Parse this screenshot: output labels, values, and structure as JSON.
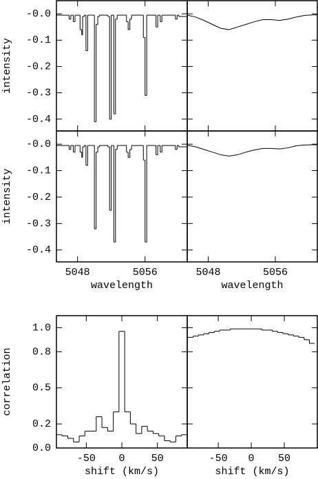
{
  "chart_data": [
    {
      "type": "line",
      "step": true,
      "color": "#000000",
      "ylabel": "intensity",
      "xticklabels": false,
      "yticklabels": true,
      "x": [
        5045.5,
        5047.0,
        5047.2,
        5047.5,
        5047.7,
        5048.3,
        5048.5,
        5048.6,
        5048.8,
        5049.0,
        5049.2,
        5049.4,
        5050.0,
        5050.2,
        5050.4,
        5050.6,
        5051.6,
        5051.8,
        5052.0,
        5052.3,
        5052.5,
        5052.7,
        5053.8,
        5054.0,
        5054.2,
        5054.4,
        5055.8,
        5056.0,
        5056.2,
        5057.3,
        5057.5,
        5057.8,
        5058.0,
        5059.6,
        5059.8,
        5060.0,
        5061.0
      ],
      "values": [
        -0.005,
        -0.02,
        -0.005,
        -0.03,
        -0.005,
        -0.06,
        -0.08,
        -0.01,
        -0.005,
        -0.14,
        -0.005,
        -0.005,
        -0.41,
        -0.04,
        -0.01,
        -0.005,
        -0.01,
        -0.4,
        -0.005,
        -0.38,
        -0.02,
        -0.005,
        -0.03,
        -0.06,
        -0.02,
        -0.005,
        -0.09,
        -0.31,
        -0.005,
        -0.05,
        -0.005,
        -0.03,
        -0.005,
        -0.02,
        -0.005,
        -0.01,
        -0.005
      ],
      "xlim": [
        5045.5,
        5061
      ],
      "ylim": [
        -0.445,
        0.05
      ],
      "xticks": [
        5048,
        5056
      ],
      "yticks": [
        {
          "value": 0,
          "label": "-0.0"
        },
        -0.1,
        -0.2,
        -0.3,
        -0.4
      ]
    },
    {
      "type": "line",
      "step": false,
      "color": "#000000",
      "xticklabels": false,
      "yticklabels": false,
      "x": [
        5045.5,
        5046.5,
        5047.5,
        5048.5,
        5049.5,
        5050.5,
        5051.5,
        5052.5,
        5053.5,
        5054.5,
        5055.5,
        5056.5,
        5057.5,
        5058.5,
        5059.5,
        5060.5,
        5061
      ],
      "values": [
        -0.005,
        -0.012,
        -0.025,
        -0.04,
        -0.055,
        -0.06,
        -0.05,
        -0.04,
        -0.03,
        -0.022,
        -0.022,
        -0.025,
        -0.02,
        -0.012,
        -0.006,
        -0.004,
        -0.004
      ],
      "xlim": [
        5045.5,
        5061
      ],
      "ylim": [
        -0.445,
        0.05
      ],
      "xticks": [
        5048,
        5056
      ],
      "yticks": [
        0,
        -0.1,
        -0.2,
        -0.3,
        -0.4
      ]
    },
    {
      "type": "line",
      "step": true,
      "color": "#000000",
      "ylabel": "intensity",
      "xlabel": "wavelength",
      "xticklabels": true,
      "yticklabels": true,
      "x": [
        5045.5,
        5047.0,
        5047.2,
        5047.5,
        5047.7,
        5048.3,
        5048.5,
        5048.6,
        5048.8,
        5049.0,
        5049.2,
        5049.4,
        5050.0,
        5050.2,
        5050.4,
        5050.6,
        5051.6,
        5051.8,
        5052.0,
        5052.3,
        5052.5,
        5052.7,
        5053.8,
        5054.0,
        5054.2,
        5054.4,
        5055.8,
        5056.0,
        5056.2,
        5057.3,
        5057.5,
        5057.8,
        5058.0,
        5059.6,
        5059.8,
        5060.0,
        5061.0
      ],
      "values": [
        -0.005,
        -0.02,
        -0.005,
        -0.03,
        -0.005,
        -0.03,
        -0.05,
        -0.01,
        -0.005,
        -0.08,
        -0.005,
        -0.005,
        -0.32,
        -0.03,
        -0.01,
        -0.005,
        -0.01,
        -0.25,
        -0.005,
        -0.37,
        -0.02,
        -0.005,
        -0.03,
        -0.05,
        -0.02,
        -0.005,
        -0.06,
        -0.37,
        -0.005,
        -0.04,
        -0.005,
        -0.03,
        -0.005,
        -0.02,
        -0.005,
        -0.01,
        -0.005
      ],
      "xlim": [
        5045.5,
        5061
      ],
      "ylim": [
        -0.445,
        0.05
      ],
      "xticks": [
        5048,
        5056
      ],
      "yticks": [
        {
          "value": 0,
          "label": "-0.0"
        },
        -0.1,
        -0.2,
        -0.3,
        -0.4
      ]
    },
    {
      "type": "line",
      "step": false,
      "color": "#000000",
      "xlabel": "wavelength",
      "xticklabels": true,
      "yticklabels": false,
      "x": [
        5045.5,
        5046.5,
        5047.5,
        5048.5,
        5049.5,
        5050.5,
        5051.5,
        5052.5,
        5053.5,
        5054.5,
        5055.5,
        5056.5,
        5057.5,
        5058.5,
        5059.5,
        5060.5,
        5061
      ],
      "values": [
        -0.004,
        -0.01,
        -0.02,
        -0.03,
        -0.04,
        -0.045,
        -0.04,
        -0.03,
        -0.022,
        -0.016,
        -0.016,
        -0.018,
        -0.014,
        -0.006,
        -0.003,
        -0.002,
        -0.002
      ],
      "xlim": [
        5045.5,
        5061
      ],
      "ylim": [
        -0.445,
        0.05
      ],
      "xticks": [
        5048,
        5056
      ],
      "yticks": [
        0,
        -0.1,
        -0.2,
        -0.3,
        -0.4
      ]
    },
    {
      "type": "histogram",
      "color": "#000000",
      "ylabel": "correlation",
      "xlabel": "shift (km/s)",
      "xticklabels": true,
      "yticklabels": true,
      "bins": [
        -92,
        -84,
        -76,
        -68,
        -60,
        -52,
        -44,
        -36,
        -28,
        -20,
        -12,
        -4,
        4,
        12,
        20,
        28,
        36,
        44,
        52,
        60,
        68,
        76,
        84,
        92
      ],
      "values": [
        0.11,
        0.1,
        0.08,
        0.05,
        0.1,
        0.14,
        0.14,
        0.26,
        0.17,
        0.14,
        0.3,
        0.97,
        0.3,
        0.2,
        0.12,
        0.18,
        0.14,
        0.12,
        0.1,
        0.06,
        0.05,
        0.1,
        0.11
      ],
      "xlim": [
        -92,
        92
      ],
      "ylim": [
        0,
        1.1
      ],
      "xticks": [
        -50,
        0,
        50
      ],
      "yticks": [
        {
          "value": 0,
          "label": "0.0"
        },
        0.2,
        0.5,
        0.8,
        {
          "value": 1,
          "label": "1.0"
        }
      ]
    },
    {
      "type": "histogram",
      "color": "#000000",
      "xlabel": "shift (km/s)",
      "xticklabels": true,
      "yticklabels": false,
      "bins": [
        -96,
        -88,
        -80,
        -72,
        -64,
        -56,
        -48,
        -40,
        -32,
        -24,
        -16,
        -8,
        0,
        8,
        16,
        24,
        32,
        40,
        48,
        56,
        64,
        72,
        80,
        88,
        96
      ],
      "values": [
        0.92,
        0.93,
        0.94,
        0.95,
        0.96,
        0.97,
        0.98,
        0.98,
        0.99,
        0.99,
        0.99,
        0.99,
        0.99,
        0.99,
        0.98,
        0.98,
        0.97,
        0.96,
        0.95,
        0.94,
        0.93,
        0.92,
        0.9,
        0.87
      ],
      "xlim": [
        -97,
        100
      ],
      "ylim": [
        0,
        1.1
      ],
      "xticks": [
        -50,
        0,
        50
      ],
      "yticks": [
        0,
        0.2,
        0.5,
        0.8,
        1
      ]
    }
  ]
}
